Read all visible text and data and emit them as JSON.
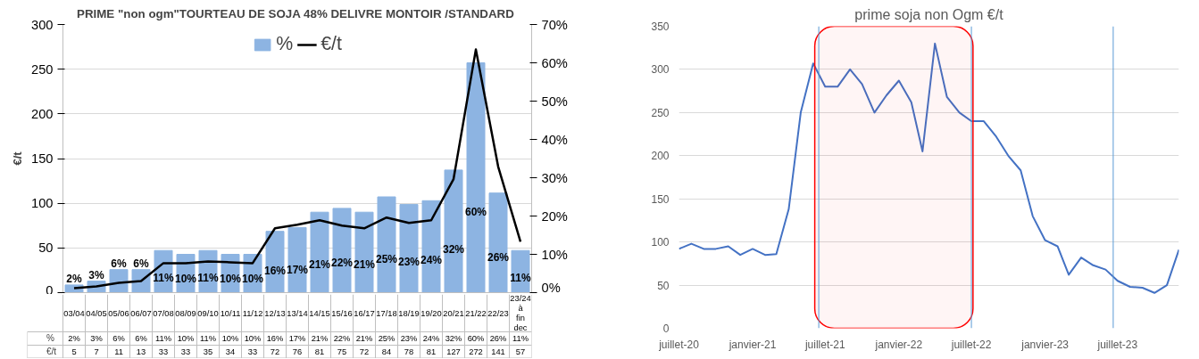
{
  "chart_data": [
    {
      "type": "bar",
      "title": "PRIME \"non ogm\"TOURTEAU DE SOJA 48% DELIVRE MONTOIR  /STANDARD",
      "ylabel": "€/t",
      "categories": [
        "03/04",
        "04/05",
        "05/06",
        "06/07",
        "07/08",
        "08/09",
        "09/10",
        "10/11",
        "11/12",
        "12/13",
        "13/14",
        "14/15",
        "15/16",
        "16/17",
        "17/18",
        "18/19",
        "19/20",
        "20/21",
        "21/22",
        "22/23",
        "23/24 à fin dec"
      ],
      "series": [
        {
          "name": "%",
          "type": "bar",
          "axis": "y2",
          "color": "#8db4e2",
          "values": [
            2,
            3,
            6,
            6,
            11,
            10,
            11,
            10,
            10,
            16,
            17,
            21,
            22,
            21,
            25,
            23,
            24,
            32,
            60,
            26,
            11
          ],
          "value_labels": [
            "2%",
            "3%",
            "6%",
            "6%",
            "11%",
            "10%",
            "11%",
            "10%",
            "10%",
            "16%",
            "17%",
            "21%",
            "22%",
            "21%",
            "25%",
            "23%",
            "24%",
            "32%",
            "60%",
            "26%",
            "11%"
          ]
        },
        {
          "name": "€/t",
          "type": "line",
          "color": "#000000",
          "values": [
            5,
            7,
            11,
            13,
            33,
            33,
            35,
            34,
            33,
            72,
            76,
            81,
            75,
            72,
            84,
            78,
            81,
            127,
            272,
            141,
            57
          ],
          "value_labels": [
            "5",
            "7",
            "11",
            "13",
            "33",
            "33",
            "35",
            "34",
            "33",
            "72",
            "76",
            "81",
            "75",
            "72",
            "84",
            "78",
            "81",
            "127",
            "272",
            "141",
            "57"
          ]
        }
      ],
      "ylim": [
        0,
        300
      ],
      "yticks": [
        0,
        50,
        100,
        150,
        200,
        250,
        300
      ],
      "y2lim": [
        0,
        70
      ],
      "y2ticks": [
        {
          "value": 0,
          "label": "0%"
        },
        {
          "value": 10,
          "label": "10%"
        },
        {
          "value": 20,
          "label": "20%"
        },
        {
          "value": 30,
          "label": "30%"
        },
        {
          "value": 40,
          "label": "40%"
        },
        {
          "value": 50,
          "label": "50%"
        },
        {
          "value": 60,
          "label": "60%"
        },
        {
          "value": 70,
          "label": "70%"
        }
      ],
      "grid": "y",
      "legend": "top",
      "data_labels": true
    },
    {
      "type": "line",
      "title": "prime soja non Ogm €/t",
      "x": [
        "2020-07",
        "2020-08",
        "2020-09",
        "2020-10",
        "2020-11",
        "2020-12",
        "2021-01",
        "2021-02",
        "2021-03",
        "2021-04",
        "2021-05",
        "2021-06",
        "2021-07",
        "2021-08",
        "2021-09",
        "2021-10",
        "2021-11",
        "2021-12",
        "2022-01",
        "2022-02",
        "2022-03",
        "2022-04",
        "2022-05",
        "2022-06",
        "2022-07",
        "2022-08",
        "2022-09",
        "2022-10",
        "2022-11",
        "2022-12",
        "2023-01",
        "2023-02",
        "2023-03",
        "2023-04",
        "2023-05",
        "2023-06",
        "2023-07",
        "2023-08",
        "2023-09",
        "2023-10",
        "2023-11",
        "2023-12"
      ],
      "series": [
        {
          "color": "#4472c4",
          "values": [
            92,
            98,
            92,
            92,
            95,
            85,
            92,
            85,
            86,
            138,
            250,
            307,
            280,
            280,
            300,
            283,
            250,
            270,
            287,
            262,
            205,
            330,
            268,
            250,
            240,
            240,
            222,
            200,
            183,
            130,
            102,
            95,
            62,
            82,
            73,
            68,
            55,
            48,
            47,
            41,
            50,
            91
          ]
        }
      ],
      "xlim": [
        "2020-07",
        "2023-12"
      ],
      "xticks": [
        {
          "value": "2020-07",
          "label": "juillet-20"
        },
        {
          "value": "2021-01",
          "label": "janvier-21"
        },
        {
          "value": "2021-07",
          "label": "juillet-21"
        },
        {
          "value": "2022-01",
          "label": "janvier-22"
        },
        {
          "value": "2022-07",
          "label": "juillet-22"
        },
        {
          "value": "2023-01",
          "label": "janvier-23"
        },
        {
          "value": "2023-07",
          "label": "juillet-23"
        }
      ],
      "ylim": [
        0,
        350
      ],
      "yticks": [
        0,
        50,
        100,
        150,
        200,
        250,
        300,
        350
      ],
      "ref_lines": [
        {
          "axis": "x",
          "value": "2021-06-15",
          "color": "#5b9bd5"
        },
        {
          "axis": "x",
          "value": "2022-07-01",
          "color": "#5b9bd5"
        },
        {
          "axis": "x",
          "value": "2023-06-20",
          "color": "#5b9bd5"
        }
      ],
      "bands": [
        {
          "axis": "x",
          "from": "2021-06-05",
          "to": "2022-07-05",
          "color": "#ff0000"
        }
      ],
      "grid": "y"
    }
  ]
}
